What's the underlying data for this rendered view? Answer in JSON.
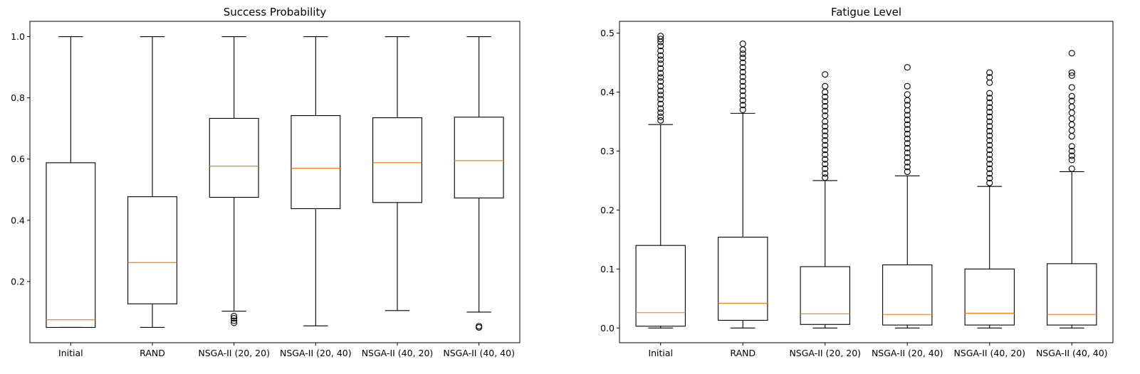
{
  "chart_data": [
    {
      "type": "box",
      "title": "Success Probability",
      "categories": [
        "Initial",
        "RAND",
        "NSGA-II (20, 20)",
        "NSGA-II (20, 40)",
        "NSGA-II (40, 20)",
        "NSGA-II (40, 40)"
      ],
      "ylim": [
        0.0,
        1.05
      ],
      "yticks": [
        0.2,
        0.4,
        0.6,
        0.8,
        1.0
      ],
      "ytick_labels": [
        "0.2",
        "0.4",
        "0.6",
        "0.8",
        "1.0"
      ],
      "boxes": [
        {
          "whislo": 0.05,
          "q1": 0.05,
          "med": 0.075,
          "q3": 0.588,
          "whishi": 1.0,
          "fliers": []
        },
        {
          "whislo": 0.05,
          "q1": 0.127,
          "med": 0.262,
          "q3": 0.477,
          "whishi": 1.0,
          "fliers": []
        },
        {
          "whislo": 0.103,
          "q1": 0.475,
          "med": 0.577,
          "q3": 0.733,
          "whishi": 1.0,
          "fliers": [
            0.087,
            0.08,
            0.072,
            0.065
          ]
        },
        {
          "whislo": 0.055,
          "q1": 0.438,
          "med": 0.57,
          "q3": 0.742,
          "whishi": 1.0,
          "fliers": []
        },
        {
          "whislo": 0.105,
          "q1": 0.458,
          "med": 0.588,
          "q3": 0.735,
          "whishi": 1.0,
          "fliers": []
        },
        {
          "whislo": 0.1,
          "q1": 0.473,
          "med": 0.595,
          "q3": 0.737,
          "whishi": 1.0,
          "fliers": [
            0.054,
            0.05
          ]
        }
      ]
    },
    {
      "type": "box",
      "title": "Fatigue Level",
      "categories": [
        "Initial",
        "RAND",
        "NSGA-II (20, 20)",
        "NSGA-II (20, 40)",
        "NSGA-II (40, 20)",
        "NSGA-II (40, 40)"
      ],
      "ylim": [
        -0.025,
        0.52
      ],
      "yticks": [
        0.0,
        0.1,
        0.2,
        0.3,
        0.4,
        0.5
      ],
      "ytick_labels": [
        "0.0",
        "0.1",
        "0.2",
        "0.3",
        "0.4",
        "0.5"
      ],
      "boxes": [
        {
          "whislo": 0.0,
          "q1": 0.003,
          "med": 0.026,
          "q3": 0.14,
          "whishi": 0.345,
          "fliers": [
            0.352,
            0.358,
            0.365,
            0.372,
            0.38,
            0.388,
            0.395,
            0.402,
            0.41,
            0.418,
            0.425,
            0.432,
            0.44,
            0.448,
            0.455,
            0.462,
            0.47,
            0.478,
            0.485,
            0.49,
            0.495
          ]
        },
        {
          "whislo": 0.0,
          "q1": 0.013,
          "med": 0.042,
          "q3": 0.154,
          "whishi": 0.364,
          "fliers": [
            0.37,
            0.378,
            0.386,
            0.394,
            0.402,
            0.41,
            0.418,
            0.426,
            0.434,
            0.442,
            0.45,
            0.458,
            0.465,
            0.472,
            0.482
          ]
        },
        {
          "whislo": 0.0,
          "q1": 0.006,
          "med": 0.024,
          "q3": 0.104,
          "whishi": 0.25,
          "fliers": [
            0.255,
            0.262,
            0.27,
            0.278,
            0.286,
            0.294,
            0.302,
            0.31,
            0.318,
            0.326,
            0.334,
            0.342,
            0.35,
            0.36,
            0.368,
            0.376,
            0.384,
            0.392,
            0.4,
            0.41,
            0.43
          ]
        },
        {
          "whislo": 0.0,
          "q1": 0.005,
          "med": 0.023,
          "q3": 0.107,
          "whishi": 0.258,
          "fliers": [
            0.265,
            0.273,
            0.281,
            0.289,
            0.297,
            0.305,
            0.313,
            0.321,
            0.329,
            0.337,
            0.345,
            0.353,
            0.361,
            0.369,
            0.378,
            0.386,
            0.396,
            0.41,
            0.442
          ]
        },
        {
          "whislo": 0.0,
          "q1": 0.005,
          "med": 0.025,
          "q3": 0.1,
          "whishi": 0.24,
          "fliers": [
            0.246,
            0.254,
            0.262,
            0.27,
            0.278,
            0.286,
            0.294,
            0.302,
            0.31,
            0.318,
            0.326,
            0.334,
            0.342,
            0.35,
            0.358,
            0.366,
            0.374,
            0.382,
            0.39,
            0.398,
            0.416,
            0.425,
            0.433
          ]
        },
        {
          "whislo": 0.0,
          "q1": 0.005,
          "med": 0.023,
          "q3": 0.109,
          "whishi": 0.265,
          "fliers": [
            0.27,
            0.285,
            0.292,
            0.3,
            0.308,
            0.325,
            0.335,
            0.345,
            0.355,
            0.365,
            0.375,
            0.385,
            0.393,
            0.408,
            0.428,
            0.433,
            0.466
          ]
        }
      ]
    }
  ]
}
